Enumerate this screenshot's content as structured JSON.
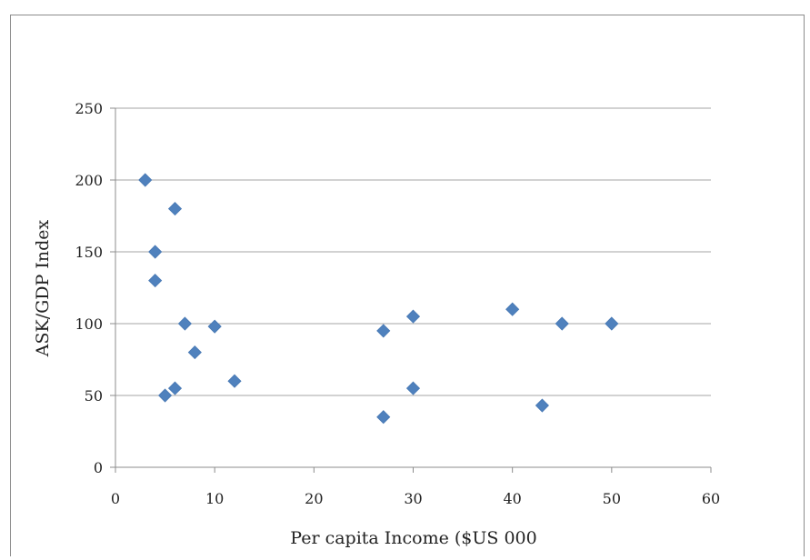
{
  "chart_data": {
    "type": "scatter",
    "title": "",
    "xlabel": "Per capita Income ($US 000",
    "ylabel": "ASK/GDP Index",
    "xlim": [
      0,
      60
    ],
    "ylim": [
      0,
      250
    ],
    "xticks": [
      0,
      10,
      20,
      30,
      40,
      50,
      60
    ],
    "yticks": [
      0,
      50,
      100,
      150,
      200,
      250
    ],
    "grid": "horizontal",
    "legend": "none",
    "marker": "diamond",
    "marker_color": "#4f81bd",
    "series": [
      {
        "name": "",
        "points": [
          {
            "x": 3,
            "y": 200
          },
          {
            "x": 6,
            "y": 180
          },
          {
            "x": 4,
            "y": 150
          },
          {
            "x": 4,
            "y": 130
          },
          {
            "x": 7,
            "y": 100
          },
          {
            "x": 10,
            "y": 98
          },
          {
            "x": 8,
            "y": 80
          },
          {
            "x": 12,
            "y": 60
          },
          {
            "x": 6,
            "y": 55
          },
          {
            "x": 5,
            "y": 50
          },
          {
            "x": 27,
            "y": 95
          },
          {
            "x": 27,
            "y": 35
          },
          {
            "x": 30,
            "y": 105
          },
          {
            "x": 30,
            "y": 55
          },
          {
            "x": 40,
            "y": 110
          },
          {
            "x": 43,
            "y": 43
          },
          {
            "x": 45,
            "y": 100
          },
          {
            "x": 50,
            "y": 100
          }
        ]
      }
    ]
  }
}
